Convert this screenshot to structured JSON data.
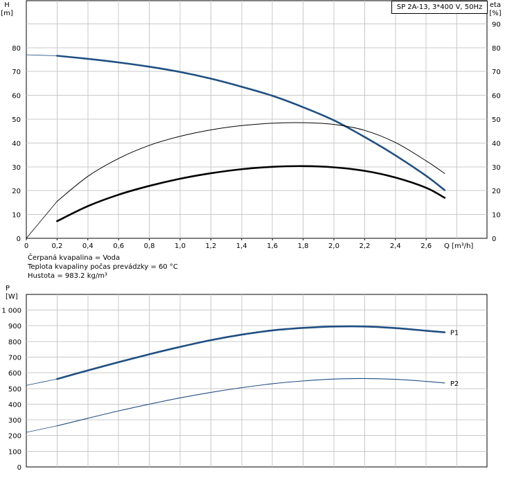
{
  "legend_title": "SP 2A-13, 3*400 V, 50Hz",
  "conditions": [
    "Čerpaná kvapalina = Voda",
    "Teplota kvapaliny počas prevádzky = 60 °C",
    "Hustota = 983.2 kg/m³"
  ],
  "colors": {
    "blue": "#1f4e82",
    "black": "#000000",
    "grid": "#c8c8c8"
  },
  "chart_data": [
    {
      "type": "line",
      "y_left_label": [
        "H",
        "[m]"
      ],
      "y_right_label": [
        "eta",
        "[%]"
      ],
      "xlabel": "Q [m³/h]",
      "xlim": [
        0,
        2.8
      ],
      "ylim": [
        0,
        90
      ],
      "grid": true,
      "x_ticks": [
        "0",
        "0,2",
        "0,4",
        "0,6",
        "0,8",
        "1,0",
        "1,2",
        "1,4",
        "1,6",
        "1,8",
        "2,0",
        "2,2",
        "2,4",
        "2,6"
      ],
      "y_left_ticks": [
        "0",
        "10",
        "20",
        "30",
        "40",
        "50",
        "60",
        "70",
        "80"
      ],
      "y_right_ticks": [
        "0",
        "10",
        "20",
        "30",
        "40",
        "50",
        "60",
        "70",
        "80",
        "90"
      ],
      "series": [
        {
          "kind": "head",
          "color": "#1f4e82",
          "x": [
            0,
            0.2,
            0.4,
            0.6,
            0.8,
            1.0,
            1.2,
            1.4,
            1.6,
            1.8,
            2.0,
            2.2,
            2.4,
            2.6,
            2.72
          ],
          "y": [
            77,
            76.6,
            75.3,
            73.8,
            72,
            69.8,
            67,
            63.6,
            59.8,
            55,
            49.5,
            42.5,
            34.8,
            26.2,
            20.2
          ],
          "solid_from": 0.2
        },
        {
          "kind": "eta_thin",
          "color": "#000000",
          "x": [
            0,
            0.2,
            0.4,
            0.6,
            0.8,
            1.0,
            1.2,
            1.4,
            1.6,
            1.8,
            2.0,
            2.2,
            2.4,
            2.6,
            2.72
          ],
          "y": [
            0,
            15.5,
            26,
            33.5,
            39,
            42.8,
            45.5,
            47.3,
            48.3,
            48.5,
            47.8,
            45.3,
            40.2,
            32.5,
            27.2
          ],
          "solid_from": 0.2
        },
        {
          "kind": "eta_thick",
          "color": "#000000",
          "x": [
            0.2,
            0.4,
            0.6,
            0.8,
            1.0,
            1.2,
            1.4,
            1.6,
            1.8,
            2.0,
            2.2,
            2.4,
            2.6,
            2.72
          ],
          "y": [
            7.2,
            13.5,
            18.3,
            22,
            25,
            27.3,
            29,
            30,
            30.3,
            29.8,
            28.3,
            25.5,
            21.2,
            17
          ],
          "solid_from": 0.2
        }
      ]
    },
    {
      "type": "line",
      "ylabel": [
        "P",
        "[W]"
      ],
      "xlim": [
        0,
        2.8
      ],
      "ylim": [
        0,
        1000
      ],
      "grid": true,
      "y_ticks": [
        "0",
        "100",
        "200",
        "300",
        "400",
        "500",
        "600",
        "700",
        "800",
        "900",
        "1 000"
      ],
      "series": [
        {
          "name": "P1",
          "color": "#1f4e82",
          "x": [
            0,
            0.2,
            0.4,
            0.6,
            0.8,
            1.0,
            1.2,
            1.4,
            1.6,
            1.8,
            2.0,
            2.2,
            2.4,
            2.6,
            2.72
          ],
          "y": [
            520,
            560,
            615,
            668,
            718,
            765,
            808,
            843,
            870,
            886,
            895,
            895,
            885,
            868,
            858
          ],
          "solid_from": 0.2
        },
        {
          "name": "P2",
          "color": "#1f4e82",
          "x": [
            0,
            0.2,
            0.4,
            0.6,
            0.8,
            1.0,
            1.2,
            1.4,
            1.6,
            1.8,
            2.0,
            2.2,
            2.4,
            2.6,
            2.72
          ],
          "y": [
            220,
            262,
            310,
            357,
            400,
            440,
            475,
            505,
            530,
            548,
            560,
            563,
            558,
            545,
            535
          ],
          "solid_from": 0.2
        }
      ]
    }
  ]
}
